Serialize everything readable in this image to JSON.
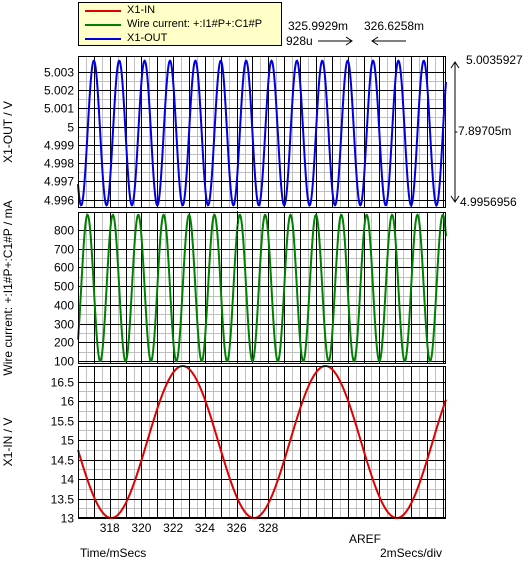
{
  "legend": {
    "entries": [
      {
        "label": "X1-IN",
        "color": "#e00000"
      },
      {
        "label": "Wire current: +:I1#P+:C1#P",
        "color": "#008000"
      },
      {
        "label": "X1-OUT",
        "color": "#0000e0"
      }
    ]
  },
  "cursor_readouts": {
    "left_time": "325.9929m",
    "left_delta": "928u",
    "right_time": "326.6258m",
    "out_max": "5.0035927",
    "out_mid": "-7.89705m",
    "out_min": "4.9956956"
  },
  "footer": {
    "time_label": "Time/mSecs",
    "timebase": "2mSecs/div",
    "aref_label": "AREF"
  },
  "colors": {
    "grid_major": "#000000",
    "grid_minor": "#c0c0c0",
    "cursor": "#000000"
  },
  "chart_data": [
    {
      "type": "line",
      "title": "",
      "xlabel": "Time/mSecs",
      "ylabel": "X1-OUT / V",
      "xlim": [
        316,
        339.2
      ],
      "ylim": [
        4.99555,
        5.00385
      ],
      "xticks": [
        318,
        320,
        322,
        324,
        326,
        328
      ],
      "yticks": [
        4.996,
        4.997,
        4.998,
        4.999,
        5,
        5.001,
        5.002,
        5.003
      ],
      "ytick_labels": [
        "4.996",
        "4.997",
        "4.998",
        "4.999",
        "5",
        "5.001",
        "5.002",
        "5.003"
      ],
      "grid": true,
      "series": [
        {
          "name": "X1-OUT",
          "color": "#0000e0",
          "kind": "sine",
          "min": 4.9956956,
          "max": 5.0035927,
          "period_ms": 1.6,
          "first_peak_ms": 317.0
        }
      ]
    },
    {
      "type": "line",
      "title": "",
      "xlabel": "Time/mSecs",
      "ylabel": "Wire current: +:I1#P+:C1#P / mA",
      "xlim": [
        316,
        339.2
      ],
      "ylim": [
        85,
        895
      ],
      "xticks": [
        318,
        320,
        322,
        324,
        326,
        328
      ],
      "yticks": [
        100,
        200,
        300,
        400,
        500,
        600,
        700,
        800
      ],
      "ytick_labels": [
        "100",
        "200",
        "300",
        "400",
        "500",
        "600",
        "700",
        "800"
      ],
      "grid": true,
      "series": [
        {
          "name": "Wire current: +:I1#P+:C1#P",
          "color": "#008000",
          "kind": "sine",
          "min": 100,
          "max": 880,
          "period_ms": 1.6,
          "first_peak_ms": 316.6
        }
      ]
    },
    {
      "type": "line",
      "title": "",
      "xlabel": "Time/mSecs",
      "ylabel": "X1-IN / V",
      "xlim": [
        316,
        339.2
      ],
      "ylim": [
        13,
        16.9
      ],
      "xticks": [
        318,
        320,
        322,
        324,
        326,
        328
      ],
      "xtick_labels": [
        "318",
        "320",
        "322",
        "324",
        "326",
        "328"
      ],
      "yticks": [
        13,
        13.5,
        14,
        14.5,
        15,
        15.5,
        16,
        16.5
      ],
      "ytick_labels": [
        "13",
        "13.5",
        "14",
        "14.5",
        "15",
        "15.5",
        "16",
        "16.5"
      ],
      "grid": true,
      "series": [
        {
          "name": "X1-IN",
          "color": "#e00000",
          "kind": "sine",
          "min": 13.0,
          "max": 16.9,
          "period_ms": 9.0,
          "first_peak_ms": 322.6
        }
      ]
    }
  ],
  "cursor_x_ms": 326.0
}
